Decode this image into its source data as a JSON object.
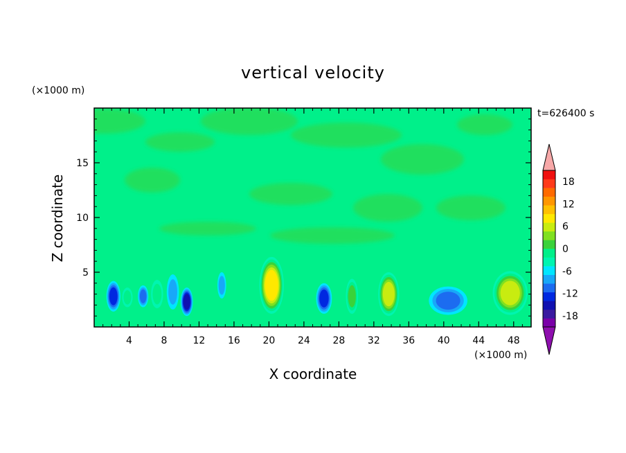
{
  "chart_data": {
    "type": "heatmap",
    "title": "vertical velocity",
    "xlabel": "X coordinate",
    "ylabel": "Z coordinate",
    "x_unit": "(×1000 m)",
    "y_unit": "(×1000 m)",
    "time_label": "t=626400 s",
    "xlim": [
      0,
      50
    ],
    "ylim": [
      0,
      20
    ],
    "x_ticks": [
      4,
      8,
      12,
      16,
      20,
      24,
      28,
      32,
      36,
      40,
      44,
      48
    ],
    "y_ticks": [
      5,
      10,
      15
    ],
    "colorbar": {
      "min": -21,
      "max": 21,
      "step": 3,
      "tick_values": [
        18,
        12,
        6,
        0,
        -6,
        -12,
        -18
      ],
      "tick_labels": [
        "18",
        "12",
        "6",
        "0",
        "-6",
        "-12",
        "-18"
      ],
      "colors": [
        "#7a00a8",
        "#3a1aa0",
        "#1010b0",
        "#0028e0",
        "#1c6cf0",
        "#18a8f8",
        "#00e6ff",
        "#00f5b0",
        "#00f08a",
        "#3ad23a",
        "#80e020",
        "#c8ec10",
        "#ffe800",
        "#ffc000",
        "#ff9600",
        "#ff6a00",
        "#ff3a1a",
        "#f01010"
      ],
      "over_color": "#f7a8a8",
      "under_color": "#8e0fae"
    },
    "cells": [
      {
        "x": 2.2,
        "z": 2.8,
        "sx": 0.8,
        "sz": 1.4,
        "w": -10
      },
      {
        "x": 3.8,
        "z": 2.7,
        "sx": 0.6,
        "sz": 0.9,
        "w": 3
      },
      {
        "x": 5.6,
        "z": 2.8,
        "sx": 0.6,
        "sz": 1.0,
        "w": -6
      },
      {
        "x": 7.2,
        "z": 3.0,
        "sx": 0.7,
        "sz": 1.3,
        "w": 4
      },
      {
        "x": 9.0,
        "z": 3.2,
        "sx": 0.7,
        "sz": 1.6,
        "w": -4
      },
      {
        "x": 10.6,
        "z": 2.3,
        "sx": 0.7,
        "sz": 1.3,
        "w": -13
      },
      {
        "x": 14.6,
        "z": 3.8,
        "sx": 0.5,
        "sz": 1.2,
        "w": -5
      },
      {
        "x": 20.3,
        "z": 3.8,
        "sx": 1.4,
        "sz": 2.6,
        "w": 17
      },
      {
        "x": 26.3,
        "z": 2.6,
        "sx": 0.9,
        "sz": 1.4,
        "w": -9
      },
      {
        "x": 29.5,
        "z": 2.8,
        "sx": 0.7,
        "sz": 1.6,
        "w": 6
      },
      {
        "x": 33.7,
        "z": 3.0,
        "sx": 1.2,
        "sz": 2.0,
        "w": 13
      },
      {
        "x": 40.5,
        "z": 2.4,
        "sx": 2.2,
        "sz": 1.3,
        "w": -8
      },
      {
        "x": 47.6,
        "z": 3.1,
        "sx": 2.0,
        "sz": 2.0,
        "w": 12
      }
    ]
  }
}
